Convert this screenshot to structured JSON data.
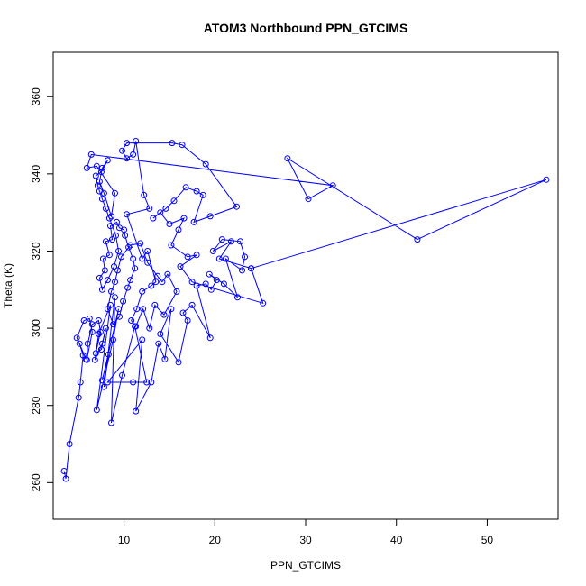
{
  "chart_data": {
    "type": "line",
    "title": "ATOM3 Northbound PPN_GTCIMS",
    "xlabel": "PPN_GTCIMS",
    "ylabel": "Theta (K)",
    "xlim": [
      2.2,
      57.8
    ],
    "ylim": [
      250.5,
      371.5
    ],
    "xticks": [
      10,
      20,
      30,
      40,
      50
    ],
    "yticks": [
      260,
      280,
      300,
      320,
      340,
      360
    ],
    "grid": false,
    "legend": "none",
    "markers": "open-circle",
    "color": "#0000ff",
    "series": [
      {
        "points": [
          [
            3.4,
            263.0
          ],
          [
            3.6,
            261.0
          ],
          [
            4.0,
            270.0
          ],
          [
            5.0,
            282.0
          ],
          [
            5.2,
            286.0
          ],
          [
            5.5,
            293.0
          ],
          [
            5.1,
            296.0
          ],
          [
            5.8,
            292.0
          ],
          [
            4.8,
            297.5
          ],
          [
            5.6,
            302.0
          ],
          [
            6.2,
            302.5
          ],
          [
            6.5,
            299.0
          ],
          [
            5.9,
            291.8
          ],
          [
            6.0,
            296.0
          ],
          [
            6.5,
            301.0
          ],
          [
            7.2,
            302.0
          ],
          [
            7.4,
            299.0
          ],
          [
            6.9,
            293.5
          ],
          [
            7.5,
            294.5
          ],
          [
            8.0,
            300.0
          ],
          [
            7.6,
            296.0
          ],
          [
            6.8,
            291.8
          ],
          [
            7.2,
            298.5
          ],
          [
            8.5,
            306.0
          ],
          [
            7.0,
            278.8
          ],
          [
            8.8,
            297.0
          ],
          [
            9.4,
            305.0
          ],
          [
            7.6,
            286.5
          ],
          [
            8.3,
            293.2
          ],
          [
            7.8,
            284.8
          ],
          [
            9.0,
            308.0
          ],
          [
            8.6,
            275.5
          ],
          [
            9.8,
            287.8
          ],
          [
            11.2,
            300.5
          ],
          [
            12.5,
            286.0
          ],
          [
            11.0,
            286.0
          ],
          [
            8.2,
            286.0
          ],
          [
            12.0,
            297.0
          ],
          [
            11.3,
            278.5
          ],
          [
            13.0,
            286.0
          ],
          [
            13.8,
            296.0
          ],
          [
            14.5,
            292.0
          ],
          [
            15.2,
            305.0
          ],
          [
            14.0,
            298.5
          ],
          [
            16.0,
            291.2
          ],
          [
            17.0,
            302.0
          ],
          [
            16.5,
            304.0
          ],
          [
            17.5,
            306.0
          ],
          [
            19.5,
            297.5
          ],
          [
            18.0,
            311.0
          ],
          [
            19.0,
            311.5
          ],
          [
            19.6,
            310.0
          ],
          [
            20.2,
            312.5
          ],
          [
            19.4,
            314.0
          ],
          [
            21.0,
            311.5
          ],
          [
            22.5,
            308.0
          ],
          [
            21.2,
            318.0
          ],
          [
            23.0,
            315.0
          ],
          [
            23.3,
            318.5
          ],
          [
            22.8,
            322.5
          ],
          [
            20.8,
            323.0
          ],
          [
            19.8,
            320.0
          ],
          [
            21.8,
            322.5
          ],
          [
            20.5,
            318.0
          ],
          [
            24.0,
            315.5
          ],
          [
            25.3,
            306.5
          ],
          [
            17.5,
            312.0
          ],
          [
            16.2,
            316.0
          ],
          [
            18.0,
            319.0
          ],
          [
            17.0,
            318.5
          ],
          [
            15.2,
            321.5
          ],
          [
            16.0,
            325.5
          ],
          [
            16.6,
            328.5
          ],
          [
            15.0,
            327.0
          ],
          [
            14.0,
            330.0
          ],
          [
            13.2,
            328.5
          ],
          [
            14.6,
            331.0
          ],
          [
            15.5,
            333.0
          ],
          [
            16.8,
            336.5
          ],
          [
            18.0,
            335.5
          ],
          [
            18.7,
            334.5
          ],
          [
            17.7,
            327.5
          ],
          [
            19.5,
            329.0
          ],
          [
            22.4,
            331.5
          ],
          [
            19.0,
            342.5
          ],
          [
            16.4,
            347.5
          ],
          [
            15.3,
            348.0
          ],
          [
            10.3,
            348.0
          ],
          [
            9.8,
            346.0
          ],
          [
            10.3,
            344.0
          ],
          [
            11.0,
            345.0
          ],
          [
            11.3,
            348.5
          ],
          [
            12.2,
            334.5
          ],
          [
            12.8,
            331.0
          ],
          [
            10.3,
            329.5
          ],
          [
            12.0,
            318.0
          ],
          [
            12.6,
            320.0
          ],
          [
            13.5,
            312.0
          ],
          [
            13.0,
            311.0
          ],
          [
            12.0,
            309.5
          ],
          [
            11.4,
            305.0
          ],
          [
            10.8,
            302.0
          ],
          [
            11.3,
            300.5
          ],
          [
            12.1,
            305.0
          ],
          [
            12.8,
            300.0
          ],
          [
            13.4,
            306.0
          ],
          [
            14.4,
            303.5
          ],
          [
            15.8,
            309.5
          ],
          [
            14.8,
            314.0
          ],
          [
            14.2,
            312.0
          ],
          [
            13.7,
            313.5
          ],
          [
            12.6,
            317.0
          ],
          [
            11.8,
            322.0
          ],
          [
            10.7,
            321.5
          ],
          [
            9.7,
            318.5
          ],
          [
            9.3,
            315.0
          ],
          [
            9.0,
            312.0
          ],
          [
            8.6,
            309.5
          ],
          [
            8.2,
            305.0
          ],
          [
            8.8,
            301.0
          ],
          [
            9.5,
            303.0
          ],
          [
            9.9,
            307.0
          ],
          [
            10.4,
            310.5
          ],
          [
            10.7,
            312.5
          ],
          [
            11.2,
            315.5
          ],
          [
            11.0,
            318.0
          ],
          [
            10.5,
            321.0
          ],
          [
            10.1,
            324.0
          ],
          [
            10.0,
            325.5
          ],
          [
            9.5,
            326.0
          ],
          [
            9.2,
            327.5
          ],
          [
            8.5,
            326.5
          ],
          [
            8.7,
            323.0
          ],
          [
            8.0,
            322.5
          ],
          [
            8.4,
            319.0
          ],
          [
            7.7,
            318.0
          ],
          [
            7.9,
            315.0
          ],
          [
            7.3,
            313.0
          ],
          [
            7.6,
            310.0
          ],
          [
            8.2,
            312.5
          ],
          [
            8.9,
            316.0
          ],
          [
            9.4,
            320.0
          ],
          [
            9.1,
            324.0
          ],
          [
            8.4,
            328.5
          ],
          [
            8.0,
            331.0
          ],
          [
            7.6,
            333.5
          ],
          [
            7.3,
            335.5
          ],
          [
            7.1,
            337.0
          ],
          [
            6.9,
            339.5
          ],
          [
            7.5,
            340.5
          ],
          [
            8.2,
            343.5
          ],
          [
            7.6,
            341.5
          ],
          [
            7.3,
            338.0
          ],
          [
            7.8,
            335.0
          ],
          [
            8.6,
            329.0
          ],
          [
            9.0,
            335.0
          ],
          [
            7.0,
            342.0
          ],
          [
            5.9,
            341.5
          ],
          [
            6.4,
            345.0
          ],
          [
            33.0,
            337.0
          ],
          [
            30.3,
            333.5
          ],
          [
            28.0,
            344.0
          ],
          [
            42.3,
            323.0
          ],
          [
            56.5,
            338.5
          ],
          [
            24.0,
            315.5
          ]
        ]
      }
    ]
  }
}
